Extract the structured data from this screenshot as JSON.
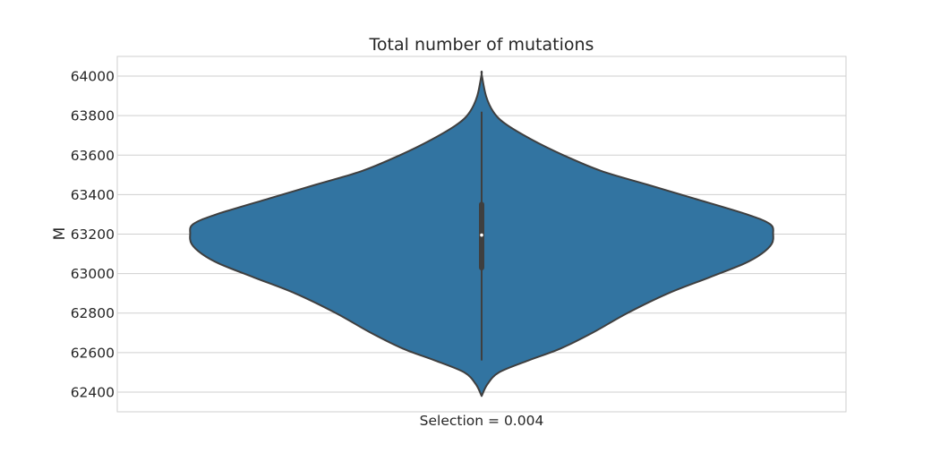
{
  "chart_data": {
    "type": "violin",
    "title": "Total number of mutations",
    "ylabel": "M",
    "xlabel": "",
    "categories": [
      "Selection = 0.004"
    ],
    "ylim": [
      62300,
      64100
    ],
    "yticks": [
      62400,
      62600,
      62800,
      63000,
      63200,
      63400,
      63600,
      63800,
      64000
    ],
    "grid": true,
    "series": [
      {
        "category": "Selection = 0.004",
        "color": "#3274a1",
        "distribution": {
          "min": 62380,
          "max": 64010,
          "whisker_low": 62560,
          "whisker_high": 63820,
          "q1": 63030,
          "median": 63195,
          "q3": 63350
        },
        "density_profile": [
          [
            62380,
            0.0
          ],
          [
            62440,
            0.02
          ],
          [
            62500,
            0.06
          ],
          [
            62560,
            0.16
          ],
          [
            62620,
            0.27
          ],
          [
            62700,
            0.38
          ],
          [
            62800,
            0.5
          ],
          [
            62900,
            0.64
          ],
          [
            62980,
            0.78
          ],
          [
            63050,
            0.9
          ],
          [
            63100,
            0.96
          ],
          [
            63150,
            0.995
          ],
          [
            63200,
            1.0
          ],
          [
            63250,
            0.99
          ],
          [
            63300,
            0.91
          ],
          [
            63380,
            0.73
          ],
          [
            63450,
            0.57
          ],
          [
            63520,
            0.41
          ],
          [
            63600,
            0.28
          ],
          [
            63680,
            0.17
          ],
          [
            63760,
            0.08
          ],
          [
            63820,
            0.04
          ],
          [
            63900,
            0.015
          ],
          [
            64010,
            0.0
          ]
        ]
      }
    ]
  }
}
